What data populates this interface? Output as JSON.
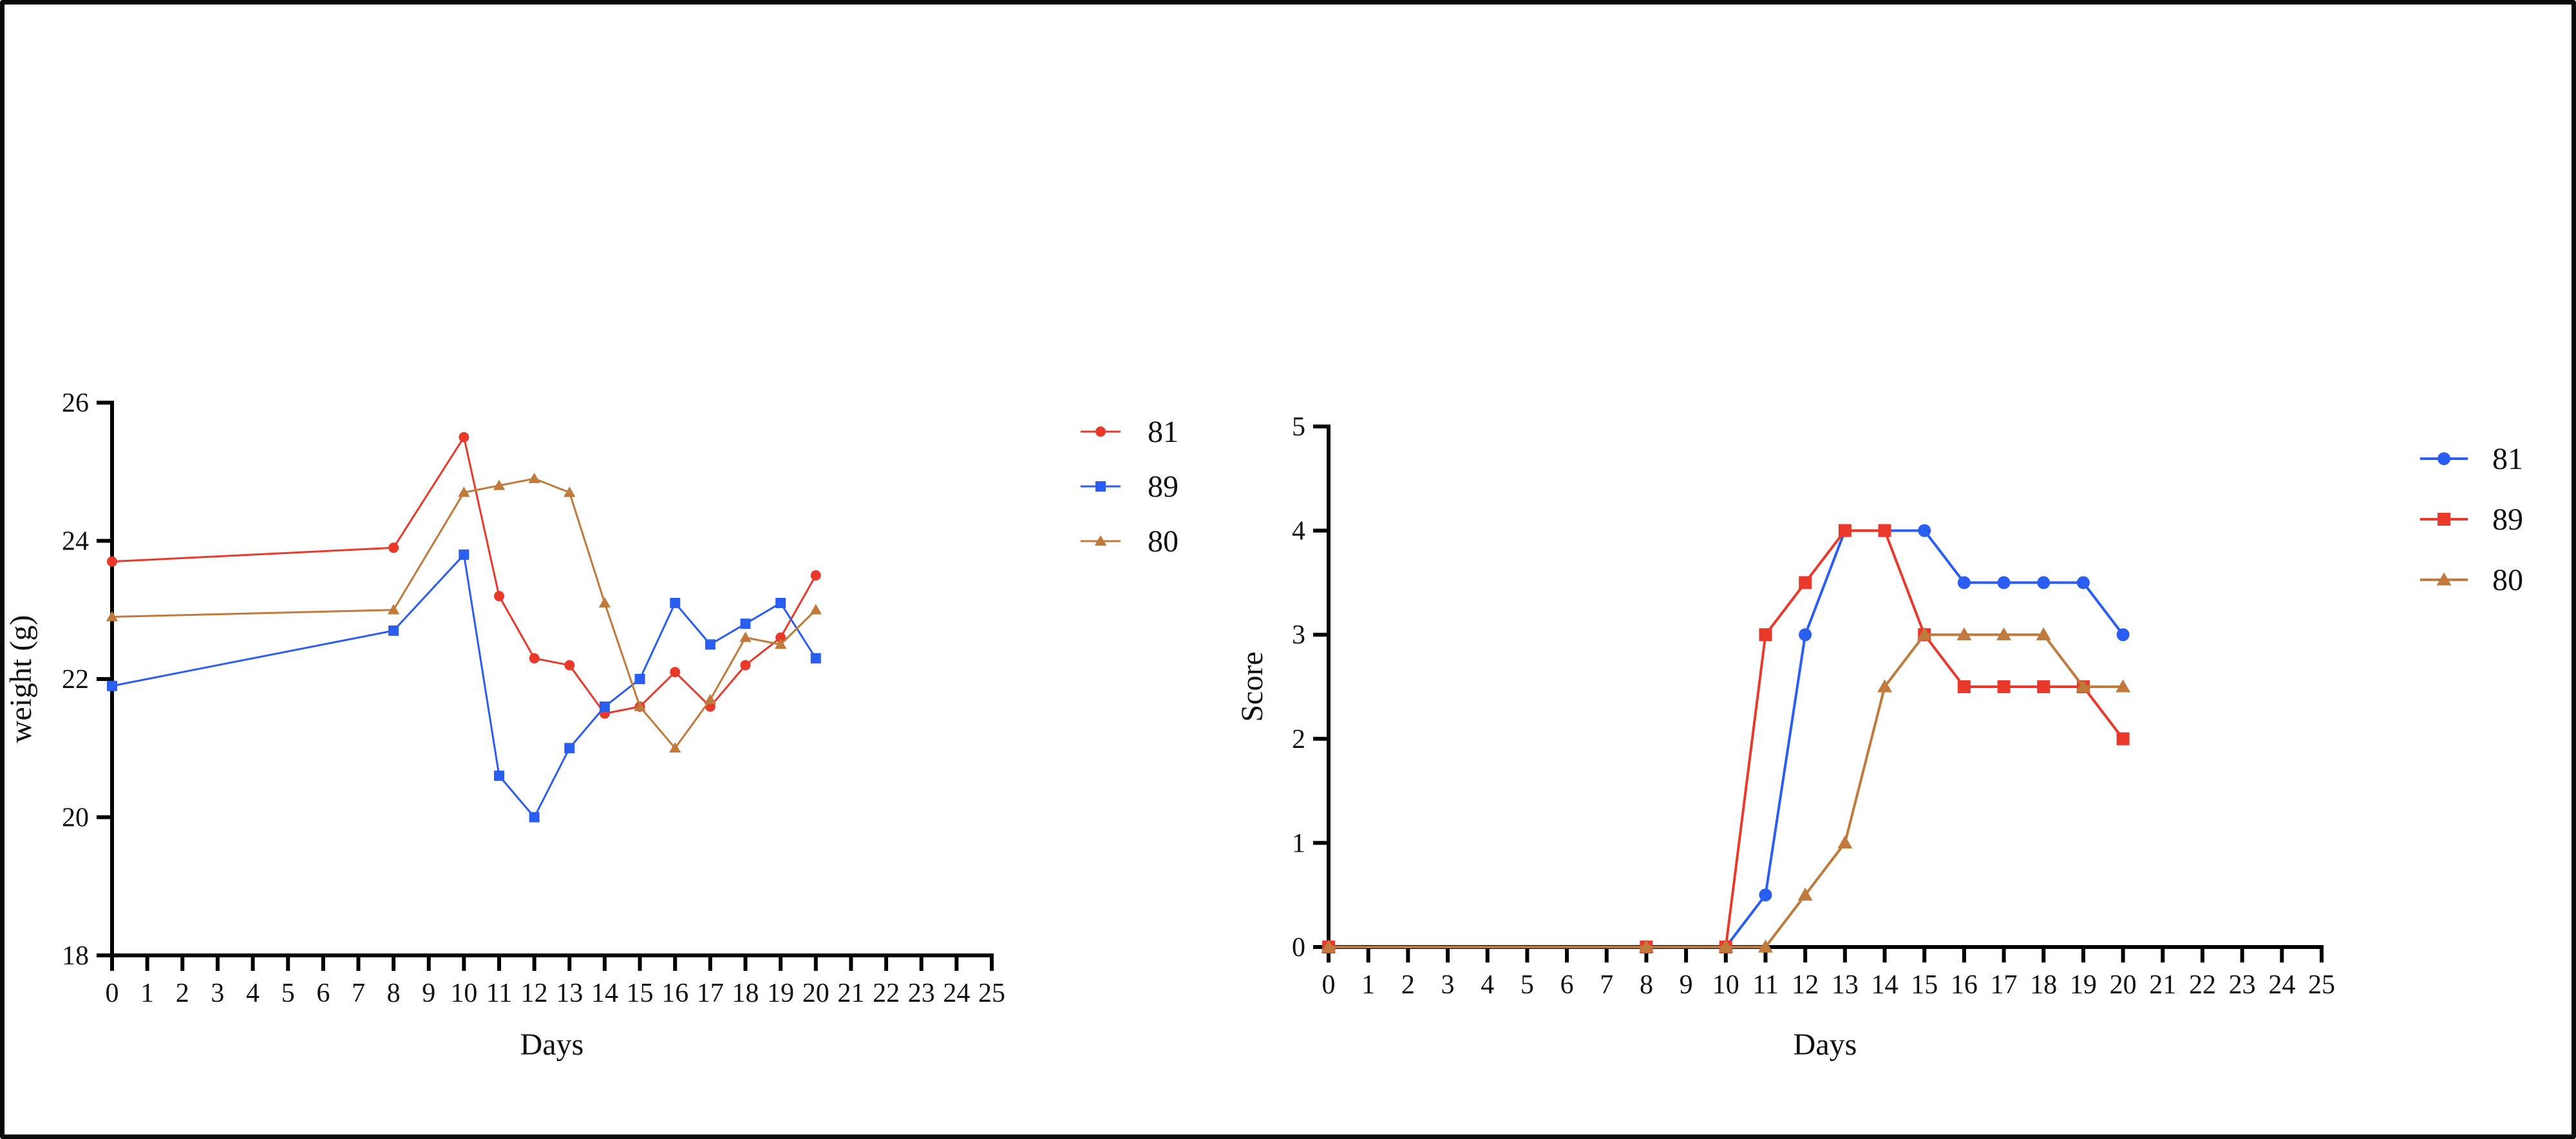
{
  "chart_data": [
    {
      "type": "line",
      "title": "",
      "xlabel": "Days",
      "ylabel": "weight (g)",
      "xlim": [
        0,
        25
      ],
      "ylim": [
        18,
        26
      ],
      "x_ticks": [
        0,
        1,
        2,
        3,
        4,
        5,
        6,
        7,
        8,
        9,
        10,
        11,
        12,
        13,
        14,
        15,
        16,
        17,
        18,
        19,
        20,
        21,
        22,
        23,
        24,
        25
      ],
      "y_ticks": [
        18,
        20,
        22,
        24,
        26
      ],
      "grid": false,
      "legend_position": "right",
      "series": [
        {
          "name": "81",
          "color": "#e8392b",
          "marker": "circle",
          "x": [
            0,
            8,
            10,
            11,
            12,
            13,
            14,
            15,
            16,
            17,
            18,
            19,
            20
          ],
          "y": [
            23.7,
            23.9,
            25.5,
            23.2,
            22.3,
            22.2,
            21.5,
            21.6,
            22.1,
            21.6,
            22.2,
            22.6,
            23.5
          ]
        },
        {
          "name": "89",
          "color": "#2a5ef0",
          "marker": "square",
          "x": [
            0,
            8,
            10,
            11,
            12,
            13,
            14,
            15,
            16,
            17,
            18,
            19,
            20
          ],
          "y": [
            21.9,
            22.7,
            23.8,
            20.6,
            20.0,
            21.0,
            21.6,
            22.0,
            23.1,
            22.5,
            22.8,
            23.1,
            22.3
          ]
        },
        {
          "name": "80",
          "color": "#c07a3c",
          "marker": "triangle",
          "x": [
            0,
            8,
            10,
            11,
            12,
            13,
            14,
            15,
            16,
            17,
            18,
            19,
            20
          ],
          "y": [
            22.9,
            23.0,
            24.7,
            24.8,
            24.9,
            24.7,
            23.1,
            21.6,
            21.0,
            21.7,
            22.6,
            22.5,
            23.0
          ]
        }
      ]
    },
    {
      "type": "line",
      "title": "",
      "xlabel": "Days",
      "ylabel": "Score",
      "xlim": [
        0,
        25
      ],
      "ylim": [
        0,
        5
      ],
      "x_ticks": [
        0,
        1,
        2,
        3,
        4,
        5,
        6,
        7,
        8,
        9,
        10,
        11,
        12,
        13,
        14,
        15,
        16,
        17,
        18,
        19,
        20,
        21,
        22,
        23,
        24,
        25
      ],
      "y_ticks": [
        0,
        1,
        2,
        3,
        4,
        5
      ],
      "grid": false,
      "legend_position": "right",
      "series": [
        {
          "name": "81",
          "color": "#2a5ef0",
          "marker": "circle",
          "x": [
            0,
            8,
            10,
            11,
            12,
            13,
            14,
            15,
            16,
            17,
            18,
            19,
            20
          ],
          "y": [
            0,
            0,
            0,
            0.5,
            3,
            4,
            4,
            4,
            3.5,
            3.5,
            3.5,
            3.5,
            3
          ]
        },
        {
          "name": "89",
          "color": "#e8392b",
          "marker": "square",
          "x": [
            0,
            8,
            10,
            11,
            12,
            13,
            14,
            15,
            16,
            17,
            18,
            19,
            20
          ],
          "y": [
            0,
            0,
            0,
            3,
            3.5,
            4,
            4,
            3,
            2.5,
            2.5,
            2.5,
            2.5,
            2
          ]
        },
        {
          "name": "80",
          "color": "#c07a3c",
          "marker": "triangle",
          "x": [
            0,
            8,
            10,
            11,
            12,
            13,
            14,
            15,
            16,
            17,
            18,
            19,
            20
          ],
          "y": [
            0,
            0,
            0,
            0,
            0.5,
            1,
            2.5,
            3,
            3,
            3,
            3,
            2.5,
            2.5
          ]
        }
      ]
    }
  ]
}
